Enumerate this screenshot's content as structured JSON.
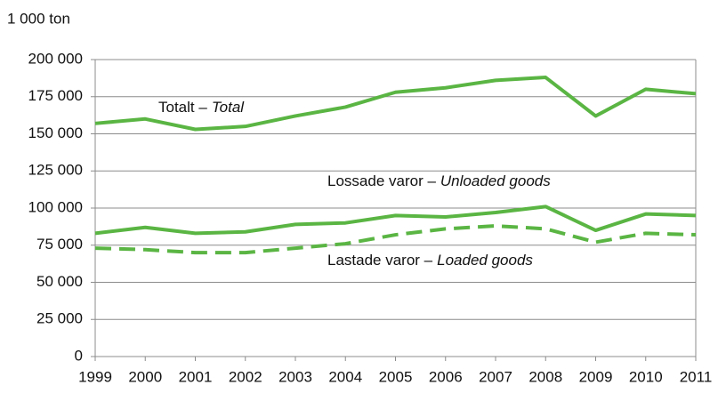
{
  "chart_data": {
    "type": "line",
    "y_axis_label": "1 000 ton",
    "x": [
      "1999",
      "2000",
      "2001",
      "2002",
      "2003",
      "2004",
      "2005",
      "2006",
      "2007",
      "2008",
      "2009",
      "2010",
      "2011"
    ],
    "series": [
      {
        "name": [
          "Totalt –",
          "Total"
        ],
        "color": "#5ab543",
        "dash": false,
        "values": [
          157000,
          160000,
          153000,
          155000,
          162000,
          168000,
          178000,
          181000,
          186000,
          188000,
          162000,
          180000,
          177000
        ]
      },
      {
        "name": [
          "Lossade varor –",
          "Unloaded goods"
        ],
        "color": "#5ab543",
        "dash": false,
        "values": [
          83000,
          87000,
          83000,
          84000,
          89000,
          90000,
          95000,
          94000,
          97000,
          101000,
          85000,
          96000,
          95000
        ]
      },
      {
        "name": [
          "Lastade varor –",
          "Loaded goods"
        ],
        "color": "#5ab543",
        "dash": true,
        "values": [
          73000,
          72000,
          70000,
          70000,
          73000,
          76000,
          82000,
          86000,
          88000,
          86000,
          77000,
          83000,
          82000
        ]
      }
    ],
    "ylim": [
      0,
      200000
    ],
    "yticks": [
      0,
      {
        "value": 25000,
        "label": "25 000"
      },
      {
        "value": 50000,
        "label": "50 000"
      },
      {
        "value": 75000,
        "label": "75 000"
      },
      {
        "value": 100000,
        "label": "100 000"
      },
      {
        "value": 125000,
        "label": "125 000"
      },
      {
        "value": 150000,
        "label": "150 000"
      },
      {
        "value": 175000,
        "label": "175 000"
      },
      {
        "value": 200000,
        "label": "200 000"
      }
    ],
    "grid": true
  }
}
